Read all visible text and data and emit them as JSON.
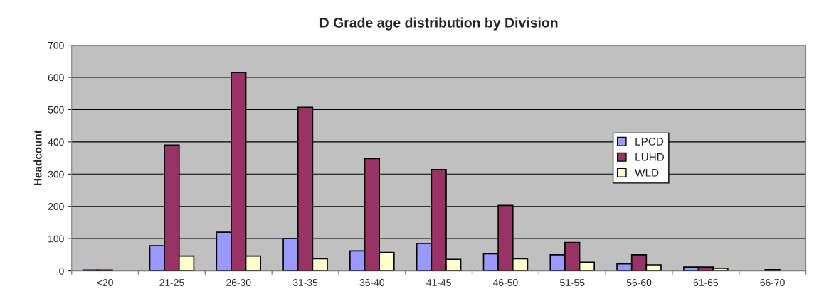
{
  "chart_data": {
    "type": "bar",
    "title": "D Grade age distribution by Division",
    "ylabel": "Headcount",
    "categories": [
      "<20",
      "21-25",
      "26-30",
      "31-35",
      "36-40",
      "41-45",
      "46-50",
      "51-55",
      "56-60",
      "61-65",
      "66-70"
    ],
    "series": [
      {
        "name": "LPCD",
        "color": "#9999ff",
        "values": [
          3,
          78,
          120,
          100,
          62,
          85,
          53,
          50,
          22,
          12,
          null
        ]
      },
      {
        "name": "LUHD",
        "color": "#993366",
        "values": [
          3,
          390,
          615,
          507,
          348,
          314,
          203,
          88,
          50,
          12,
          4
        ]
      },
      {
        "name": "WLD",
        "color": "#ffffcc",
        "values": [
          null,
          46,
          46,
          38,
          57,
          36,
          38,
          27,
          19,
          8,
          null
        ]
      }
    ],
    "ylim": [
      0,
      700
    ],
    "yticks": [
      0,
      100,
      200,
      300,
      400,
      500,
      600,
      700
    ],
    "grid": "y",
    "legend": "right"
  }
}
